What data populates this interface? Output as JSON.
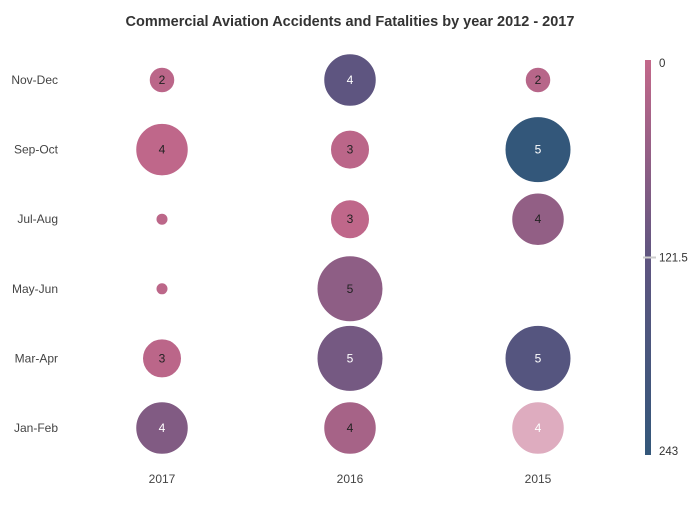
{
  "chart_data": {
    "type": "bubble",
    "title": "Commercial Aviation Accidents and Fatalities by year 2012 - 2017",
    "x_categories": [
      "2017",
      "2016",
      "2015"
    ],
    "y_categories": [
      "Jan-Feb",
      "Mar-Apr",
      "May-Jun",
      "Jul-Aug",
      "Sep-Oct",
      "Nov-Dec"
    ],
    "size_range": [
      1,
      5
    ],
    "color_scale": {
      "min": 0,
      "max": 243,
      "tick_labels": [
        "0",
        "121.5",
        "243"
      ],
      "colors": [
        "#c3688a",
        "#5f5580",
        "#33577a"
      ]
    },
    "points": [
      {
        "x": "2017",
        "y": "Nov-Dec",
        "count": 2,
        "fatalities": 10,
        "label": "2"
      },
      {
        "x": "2016",
        "y": "Nov-Dec",
        "count": 4,
        "fatalities": 125,
        "label": "4"
      },
      {
        "x": "2015",
        "y": "Nov-Dec",
        "count": 2,
        "fatalities": 15,
        "label": "2"
      },
      {
        "x": "2017",
        "y": "Sep-Oct",
        "count": 4,
        "fatalities": 5,
        "label": "4"
      },
      {
        "x": "2016",
        "y": "Sep-Oct",
        "count": 3,
        "fatalities": 10,
        "label": "3"
      },
      {
        "x": "2015",
        "y": "Sep-Oct",
        "count": 5,
        "fatalities": 243,
        "label": "5"
      },
      {
        "x": "2017",
        "y": "Jul-Aug",
        "count": 1,
        "fatalities": 8,
        "label": ""
      },
      {
        "x": "2016",
        "y": "Jul-Aug",
        "count": 3,
        "fatalities": 5,
        "label": "3"
      },
      {
        "x": "2015",
        "y": "Jul-Aug",
        "count": 4,
        "fatalities": 60,
        "label": "4"
      },
      {
        "x": "2017",
        "y": "May-Jun",
        "count": 1,
        "fatalities": 8,
        "label": ""
      },
      {
        "x": "2016",
        "y": "May-Jun",
        "count": 5,
        "fatalities": 65,
        "label": "5"
      },
      {
        "x": "2017",
        "y": "Mar-Apr",
        "count": 3,
        "fatalities": 10,
        "label": "3"
      },
      {
        "x": "2016",
        "y": "Mar-Apr",
        "count": 5,
        "fatalities": 95,
        "label": "5"
      },
      {
        "x": "2015",
        "y": "Mar-Apr",
        "count": 5,
        "fatalities": 150,
        "label": "5"
      },
      {
        "x": "2017",
        "y": "Jan-Feb",
        "count": 4,
        "fatalities": 80,
        "label": "4"
      },
      {
        "x": "2016",
        "y": "Jan-Feb",
        "count": 4,
        "fatalities": 35,
        "label": "4"
      },
      {
        "x": "2015",
        "y": "Jan-Feb",
        "count": 4,
        "fatalities": 0,
        "faded": true,
        "label": "4"
      }
    ]
  }
}
